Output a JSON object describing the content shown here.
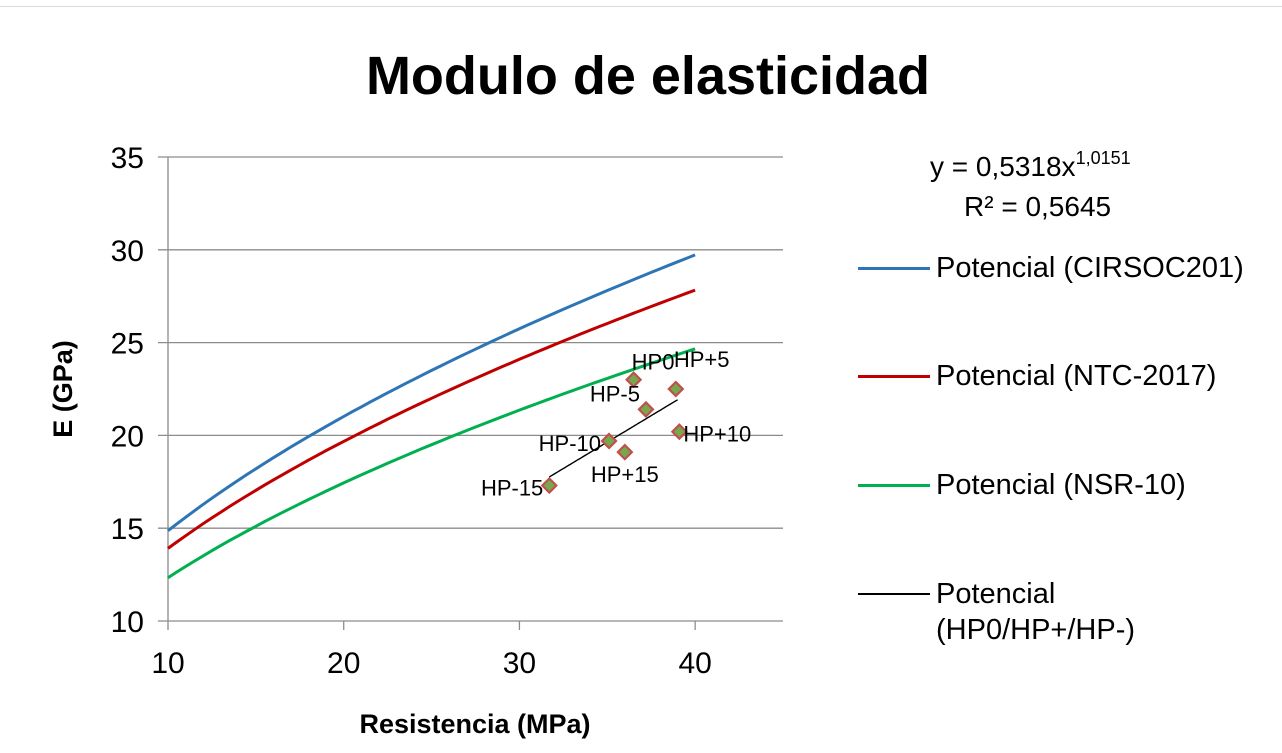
{
  "chart_data": {
    "type": "line",
    "title": "Modulo de elasticidad",
    "xlabel": "Resistencia (MPa)",
    "ylabel": "E (GPa)",
    "xlim": [
      10,
      45
    ],
    "ylim": [
      10,
      35
    ],
    "xticks": [
      10,
      20,
      30,
      40
    ],
    "yticks": [
      10,
      15,
      20,
      25,
      30,
      35
    ],
    "grid": "horizontal",
    "legend_position": "right",
    "series": [
      {
        "name": "Potencial (CIRSOC201)",
        "color": "#2e75b6",
        "kind": "curve",
        "a": 4.7,
        "b": 0.5,
        "x_range": [
          10,
          40
        ]
      },
      {
        "name": "Potencial (NTC-2017)",
        "color": "#c00000",
        "kind": "curve",
        "a": 4.4,
        "b": 0.5,
        "x_range": [
          10,
          40
        ]
      },
      {
        "name": "Potencial (NSR-10)",
        "color": "#00b050",
        "kind": "curve",
        "a": 3.9,
        "b": 0.5,
        "x_range": [
          10,
          40
        ]
      },
      {
        "name": "Potencial\n(HP0/HP+/HP-)",
        "color": "#000000",
        "kind": "curve",
        "a": 0.5318,
        "b": 1.0151,
        "x_range": [
          31.7,
          39.0
        ]
      }
    ],
    "points": [
      {
        "label": "HP0",
        "x": 36.5,
        "y": 23.0
      },
      {
        "label": "HP+5",
        "x": 38.9,
        "y": 22.5
      },
      {
        "label": "HP-5",
        "x": 37.2,
        "y": 21.4
      },
      {
        "label": "HP-10",
        "x": 35.1,
        "y": 19.7
      },
      {
        "label": "HP+10",
        "x": 39.1,
        "y": 20.2
      },
      {
        "label": "HP+15",
        "x": 36.0,
        "y": 19.1
      },
      {
        "label": "HP-15",
        "x": 31.7,
        "y": 17.3
      }
    ],
    "point_style": {
      "fill": "#76a84d",
      "stroke": "#c0504d"
    },
    "equation": {
      "line1": "y = 0,5318x",
      "exponent": "1,0151",
      "line2": "R² = 0,5645"
    }
  }
}
